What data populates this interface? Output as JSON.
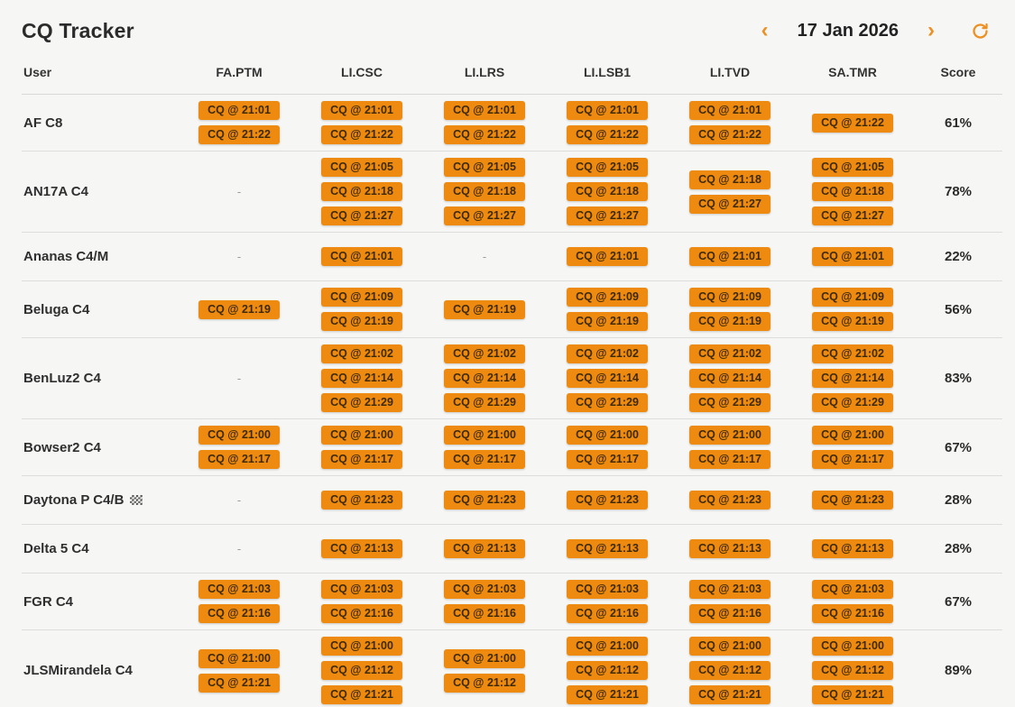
{
  "app": {
    "title": "CQ Tracker"
  },
  "date_nav": {
    "prev_label": "‹",
    "date": "17 Jan 2026",
    "next_label": "›"
  },
  "colors": {
    "accent_orange": "#ee8a0f",
    "badge_text": "#3d2a00",
    "page_background": "#f6f6f4"
  },
  "table": {
    "user_column_label": "User",
    "badge_column_labels": [
      "FA.PTM",
      "LI.CSC",
      "LI.LRS",
      "LI.LSB1",
      "LI.TVD",
      "SA.TMR"
    ],
    "score_column_label": "Score",
    "empty_cell": "-",
    "rows": [
      {
        "user": "AF C8",
        "marker": null,
        "score": "61%",
        "badges": [
          [
            "CQ @ 21:01",
            "CQ @ 21:22"
          ],
          [
            "CQ @ 21:01",
            "CQ @ 21:22"
          ],
          [
            "CQ @ 21:01",
            "CQ @ 21:22"
          ],
          [
            "CQ @ 21:01",
            "CQ @ 21:22"
          ],
          [
            "CQ @ 21:01",
            "CQ @ 21:22"
          ],
          [
            "CQ @ 21:22"
          ]
        ]
      },
      {
        "user": "AN17A C4",
        "marker": null,
        "score": "78%",
        "badges": [
          [],
          [
            "CQ @ 21:05",
            "CQ @ 21:18",
            "CQ @ 21:27"
          ],
          [
            "CQ @ 21:05",
            "CQ @ 21:18",
            "CQ @ 21:27"
          ],
          [
            "CQ @ 21:05",
            "CQ @ 21:18",
            "CQ @ 21:27"
          ],
          [
            "CQ @ 21:18",
            "CQ @ 21:27"
          ],
          [
            "CQ @ 21:05",
            "CQ @ 21:18",
            "CQ @ 21:27"
          ]
        ]
      },
      {
        "user": "Ananas C4/M",
        "marker": null,
        "score": "22%",
        "badges": [
          [],
          [
            "CQ @ 21:01"
          ],
          [],
          [
            "CQ @ 21:01"
          ],
          [
            "CQ @ 21:01"
          ],
          [
            "CQ @ 21:01"
          ]
        ]
      },
      {
        "user": "Beluga C4",
        "marker": null,
        "score": "56%",
        "badges": [
          [
            "CQ @ 21:19"
          ],
          [
            "CQ @ 21:09",
            "CQ @ 21:19"
          ],
          [
            "CQ @ 21:19"
          ],
          [
            "CQ @ 21:09",
            "CQ @ 21:19"
          ],
          [
            "CQ @ 21:09",
            "CQ @ 21:19"
          ],
          [
            "CQ @ 21:09",
            "CQ @ 21:19"
          ]
        ]
      },
      {
        "user": "BenLuz2 C4",
        "marker": null,
        "score": "83%",
        "badges": [
          [],
          [
            "CQ @ 21:02",
            "CQ @ 21:14",
            "CQ @ 21:29"
          ],
          [
            "CQ @ 21:02",
            "CQ @ 21:14",
            "CQ @ 21:29"
          ],
          [
            "CQ @ 21:02",
            "CQ @ 21:14",
            "CQ @ 21:29"
          ],
          [
            "CQ @ 21:02",
            "CQ @ 21:14",
            "CQ @ 21:29"
          ],
          [
            "CQ @ 21:02",
            "CQ @ 21:14",
            "CQ @ 21:29"
          ]
        ]
      },
      {
        "user": "Bowser2 C4",
        "marker": null,
        "score": "67%",
        "badges": [
          [
            "CQ @ 21:00",
            "CQ @ 21:17"
          ],
          [
            "CQ @ 21:00",
            "CQ @ 21:17"
          ],
          [
            "CQ @ 21:00",
            "CQ @ 21:17"
          ],
          [
            "CQ @ 21:00",
            "CQ @ 21:17"
          ],
          [
            "CQ @ 21:00",
            "CQ @ 21:17"
          ],
          [
            "CQ @ 21:00",
            "CQ @ 21:17"
          ]
        ]
      },
      {
        "user": "Daytona P C4/B",
        "marker": "checkered-flag",
        "score": "28%",
        "badges": [
          [],
          [
            "CQ @ 21:23"
          ],
          [
            "CQ @ 21:23"
          ],
          [
            "CQ @ 21:23"
          ],
          [
            "CQ @ 21:23"
          ],
          [
            "CQ @ 21:23"
          ]
        ]
      },
      {
        "user": "Delta 5 C4",
        "marker": null,
        "score": "28%",
        "badges": [
          [],
          [
            "CQ @ 21:13"
          ],
          [
            "CQ @ 21:13"
          ],
          [
            "CQ @ 21:13"
          ],
          [
            "CQ @ 21:13"
          ],
          [
            "CQ @ 21:13"
          ]
        ]
      },
      {
        "user": "FGR C4",
        "marker": null,
        "score": "67%",
        "badges": [
          [
            "CQ @ 21:03",
            "CQ @ 21:16"
          ],
          [
            "CQ @ 21:03",
            "CQ @ 21:16"
          ],
          [
            "CQ @ 21:03",
            "CQ @ 21:16"
          ],
          [
            "CQ @ 21:03",
            "CQ @ 21:16"
          ],
          [
            "CQ @ 21:03",
            "CQ @ 21:16"
          ],
          [
            "CQ @ 21:03",
            "CQ @ 21:16"
          ]
        ]
      },
      {
        "user": "JLSMirandela C4",
        "marker": null,
        "score": "89%",
        "badges": [
          [
            "CQ @ 21:00",
            "CQ @ 21:21"
          ],
          [
            "CQ @ 21:00",
            "CQ @ 21:12",
            "CQ @ 21:21"
          ],
          [
            "CQ @ 21:00",
            "CQ @ 21:12"
          ],
          [
            "CQ @ 21:00",
            "CQ @ 21:12",
            "CQ @ 21:21"
          ],
          [
            "CQ @ 21:00",
            "CQ @ 21:12",
            "CQ @ 21:21"
          ],
          [
            "CQ @ 21:00",
            "CQ @ 21:12",
            "CQ @ 21:21"
          ]
        ]
      }
    ]
  }
}
